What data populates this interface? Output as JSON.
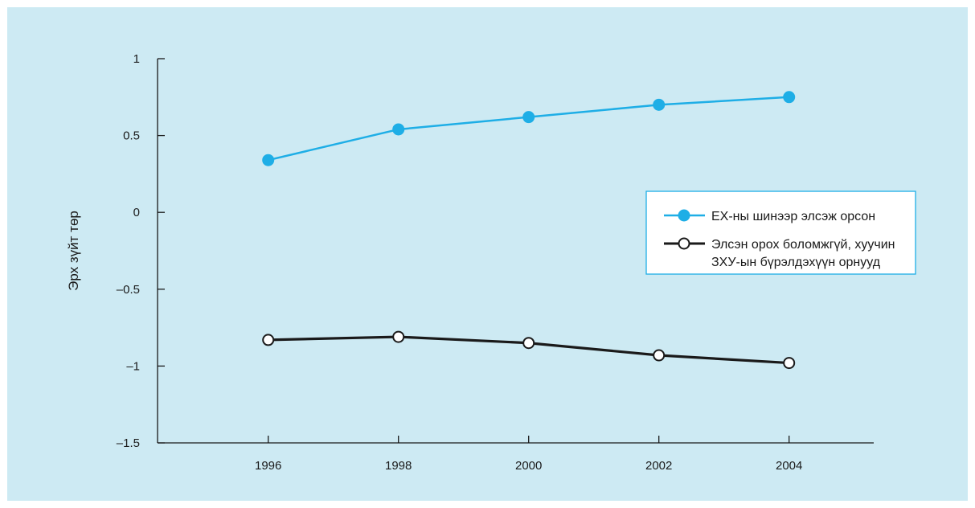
{
  "chart_data": {
    "type": "line",
    "x": [
      1996,
      1998,
      2000,
      2002,
      2004
    ],
    "xticks": [
      "1996",
      "1998",
      "2000",
      "2002",
      "2004"
    ],
    "yticks": [
      "1",
      "0.5",
      "0",
      "–0.5",
      "–1",
      "–1.5"
    ],
    "ytick_values": [
      1,
      0.5,
      0,
      -0.5,
      -1,
      -1.5
    ],
    "ylim": [
      -1.5,
      1
    ],
    "xlim": [
      1994.3,
      2005.3
    ],
    "ylabel": "Эрх зүйт төр",
    "xlabel": "",
    "title": "",
    "grid": false,
    "legend_position": "right",
    "series": [
      {
        "name": "ЕХ-ны шинээр элсэж орсон",
        "legend_lines": [
          "ЕХ-ны шинээр элсэж орсон"
        ],
        "values": [
          0.34,
          0.54,
          0.62,
          0.7,
          0.75
        ],
        "color": "#1eaee6",
        "marker": "filled-circle"
      },
      {
        "name": "Элсэн орох боломжгүй, хуучин ЗХУ-ын бүрэлдэхүүн орнууд",
        "legend_lines": [
          "Элсэн орох боломжгүй, хуучин",
          "ЗХУ-ын бүрэлдэхүүн орнууд"
        ],
        "values": [
          -0.83,
          -0.81,
          -0.85,
          -0.93,
          -0.98
        ],
        "color": "#1a1a1a",
        "marker": "open-circle"
      }
    ]
  }
}
